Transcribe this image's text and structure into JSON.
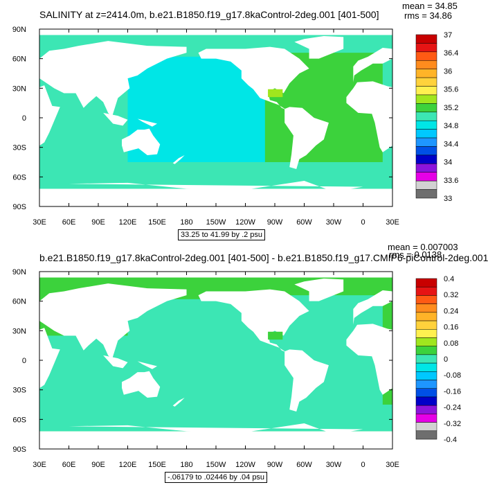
{
  "chart_data": [
    {
      "type": "heatmap",
      "title": "SALINITY at z=2414.0m, b.e21.B1850.f19_g17.8kaControl-2deg.001 [401-500]",
      "stats": {
        "mean": "mean = 34.85",
        "rms": "rms = 34.86"
      },
      "range_text": "33.25 to 41.99 by .2 psu",
      "x_ticks": [
        "30E",
        "60E",
        "90E",
        "120E",
        "150E",
        "180",
        "150W",
        "120W",
        "90W",
        "60W",
        "30W",
        "0",
        "30E"
      ],
      "y_ticks": [
        "90N",
        "60N",
        "30N",
        "0",
        "30S",
        "60S",
        "90S"
      ],
      "colorbar_labels": [
        "37",
        "36.4",
        "36",
        "35.6",
        "35.2",
        "34.8",
        "34.4",
        "34",
        "33.6",
        "33"
      ],
      "colorbar_colors": [
        "#c80000",
        "#e61414",
        "#ff5a14",
        "#ff8c1e",
        "#ffb428",
        "#ffd23c",
        "#fff050",
        "#a0e61e",
        "#3cd23c",
        "#3ce6b4",
        "#00e6e6",
        "#00c8ff",
        "#1e96ff",
        "#0050e6",
        "#0000c8",
        "#8c14dc",
        "#e600e6",
        "#d2d2d2",
        "#6e6e6e"
      ],
      "field_colors": {
        "pacific": "#00e6e6",
        "indian": "#3ce6b4",
        "atlantic": "#3cd23c",
        "southern": "#3ce6b4",
        "arctic": "#3ce6b4",
        "med": "#c80000",
        "gulf": "#a0e61e"
      }
    },
    {
      "type": "heatmap",
      "title": "b.e21.B1850.f19_g17.8kaControl-2deg.001 [401-500] - b.e21.B1850.f19_g17.CMIP6-piControl-2deg.001",
      "stats": {
        "mean": "mean = 0.007003",
        "rms": "rms = 0.0138"
      },
      "range_text": "-.06179 to .02446 by .04 psu",
      "x_ticks": [
        "30E",
        "60E",
        "90E",
        "120E",
        "150E",
        "180",
        "150W",
        "120W",
        "90W",
        "60W",
        "30W",
        "0",
        "30E"
      ],
      "y_ticks": [
        "90N",
        "60N",
        "30N",
        "0",
        "30S",
        "60S",
        "90S"
      ],
      "colorbar_labels": [
        "0.4",
        "0.32",
        "0.24",
        "0.16",
        "0.08",
        "0",
        "-0.08",
        "-0.16",
        "-0.24",
        "-0.32",
        "-0.4"
      ],
      "colorbar_colors": [
        "#c80000",
        "#e61414",
        "#ff5a14",
        "#ff8c1e",
        "#ffb428",
        "#ffd23c",
        "#fff050",
        "#a0e61e",
        "#3cd23c",
        "#3ce6b4",
        "#00e6e6",
        "#00c8ff",
        "#1e96ff",
        "#0050e6",
        "#0000c8",
        "#8c14dc",
        "#e600e6",
        "#d2d2d2",
        "#6e6e6e"
      ],
      "field_colors": {
        "pacific": "#3ce6b4",
        "indian": "#3ce6b4",
        "atlantic": "#3ce6b4",
        "southern": "#3ce6b4",
        "arctic": "#3ce6b4",
        "med": "#3cd23c",
        "gulf": "#3cd23c"
      },
      "field_base": "#3cd23c"
    }
  ]
}
